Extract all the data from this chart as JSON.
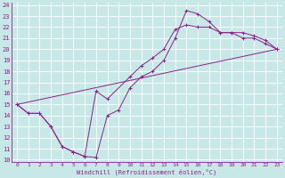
{
  "xlabel": "Windchill (Refroidissement éolien,°C)",
  "bg_color": "#c8e8e8",
  "line_color": "#882288",
  "xlim": [
    -0.5,
    23.5
  ],
  "ylim": [
    9.8,
    24.2
  ],
  "xticks": [
    0,
    1,
    2,
    3,
    4,
    5,
    6,
    7,
    8,
    9,
    10,
    11,
    12,
    13,
    14,
    15,
    16,
    17,
    18,
    19,
    20,
    21,
    22,
    23
  ],
  "yticks": [
    10,
    11,
    12,
    13,
    14,
    15,
    16,
    17,
    18,
    19,
    20,
    21,
    22,
    23,
    24
  ],
  "curve1_x": [
    0,
    1,
    2,
    3,
    4,
    5,
    6,
    7,
    8,
    9,
    10,
    11,
    12,
    13,
    14,
    15,
    16,
    17,
    18,
    19,
    20,
    21,
    22,
    23
  ],
  "curve1_y": [
    15.0,
    14.2,
    14.2,
    13.0,
    11.2,
    10.7,
    10.3,
    10.2,
    14.0,
    14.5,
    16.5,
    17.5,
    18.0,
    19.0,
    21.0,
    23.5,
    23.2,
    22.5,
    21.5,
    21.5,
    21.0,
    21.0,
    20.5,
    20.0
  ],
  "curve2_x": [
    0,
    23
  ],
  "curve2_y": [
    15.0,
    20.0
  ],
  "curve3_x": [
    0,
    1,
    2,
    3,
    4,
    5,
    6,
    7,
    8,
    10,
    11,
    12,
    13,
    14,
    15,
    16,
    17,
    18,
    19,
    20,
    21,
    22,
    23
  ],
  "curve3_y": [
    15.0,
    14.2,
    14.2,
    13.0,
    11.2,
    10.7,
    10.3,
    16.2,
    15.5,
    17.5,
    18.5,
    19.2,
    20.0,
    21.8,
    22.2,
    22.0,
    22.0,
    21.5,
    21.5,
    21.5,
    21.2,
    20.8,
    20.0
  ]
}
